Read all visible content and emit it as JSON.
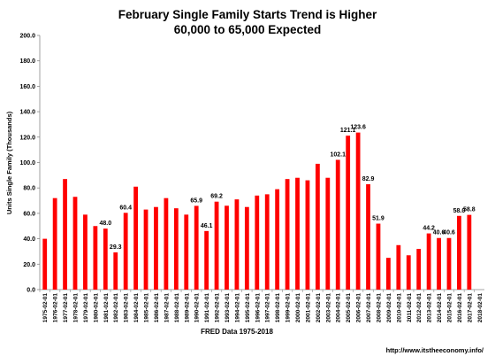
{
  "chart_data": {
    "type": "bar",
    "title": "February Single Family Starts Trend is Higher",
    "subtitle": "60,000 to 65,000 Expected",
    "xlabel": "FRED  Data 1975-2018",
    "ylabel": "Units Single Family (Thousands)",
    "ylim": [
      0,
      200
    ],
    "yticks": [
      "0.0",
      "20.0",
      "40.0",
      "60.0",
      "80.0",
      "100.0",
      "120.0",
      "140.0",
      "160.0",
      "180.0",
      "200.0"
    ],
    "grid": false,
    "legend": "none",
    "bar_color": "#ff0000",
    "categories": [
      "1975-02-01",
      "1976-02-01",
      "1977-02-01",
      "1978-02-01",
      "1979-02-01",
      "1980-02-01",
      "1981-02-01",
      "1982-02-01",
      "1983-02-01",
      "1984-02-01",
      "1985-02-01",
      "1986-02-01",
      "1987-02-01",
      "1988-02-01",
      "1989-02-01",
      "1990-02-01",
      "1991-02-01",
      "1992-02-01",
      "1993-02-01",
      "1994-02-01",
      "1995-02-01",
      "1996-02-01",
      "1997-02-01",
      "1998-02-01",
      "1999-02-01",
      "2000-02-01",
      "2001-02-01",
      "2002-02-01",
      "2003-02-01",
      "2004-02-01",
      "2005-02-01",
      "2006-02-01",
      "2007-02-01",
      "2008-02-01",
      "2009-02-01",
      "2010-02-01",
      "2011-02-01",
      "2012-02-01",
      "2013-02-01",
      "2014-02-01",
      "2015-02-01",
      "2016-02-01",
      "2017-02-01",
      "2018-02-01"
    ],
    "values": [
      40,
      72,
      87,
      73,
      59,
      50,
      48.0,
      29.3,
      60.4,
      81,
      63,
      65,
      72,
      64,
      59,
      65.9,
      46.1,
      69.2,
      66,
      71,
      65,
      74,
      75,
      79,
      87,
      88,
      86,
      99,
      88,
      102.1,
      121.1,
      123.6,
      82.9,
      51.9,
      25,
      35,
      27,
      32,
      44.2,
      40.6,
      40.6,
      58.0,
      58.8,
      null
    ],
    "data_labels": [
      {
        "index": 6,
        "text": "48.0"
      },
      {
        "index": 7,
        "text": "29.3"
      },
      {
        "index": 8,
        "text": "60.4"
      },
      {
        "index": 15,
        "text": "65.9"
      },
      {
        "index": 16,
        "text": "46.1"
      },
      {
        "index": 17,
        "text": "69.2"
      },
      {
        "index": 29,
        "text": "102.1"
      },
      {
        "index": 30,
        "text": "121.1"
      },
      {
        "index": 31,
        "text": "123.6"
      },
      {
        "index": 32,
        "text": "82.9"
      },
      {
        "index": 33,
        "text": "51.9"
      },
      {
        "index": 38,
        "text": "44.2"
      },
      {
        "index": 39,
        "text": "40.6"
      },
      {
        "index": 40,
        "text": "40.6"
      },
      {
        "index": 41,
        "text": "58.0"
      },
      {
        "index": 42,
        "text": "58.8"
      }
    ]
  },
  "footer": {
    "source_url": "http://www.itstheeconomy.info/"
  }
}
